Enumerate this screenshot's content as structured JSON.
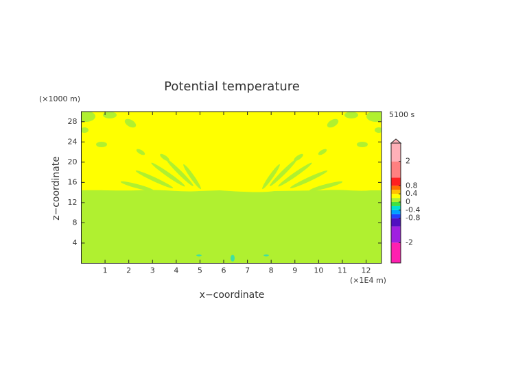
{
  "chart_data": {
    "type": "contour",
    "title": "Potential temperature",
    "xlabel": "x−coordinate",
    "ylabel": "z−coordinate",
    "x_unit": "(×1E4 m)",
    "y_unit": "(×1000 m)",
    "time_label": "5100 s",
    "xlim": [
      0,
      12.65
    ],
    "ylim": [
      0,
      30
    ],
    "xticks": [
      1,
      2,
      3,
      4,
      5,
      6,
      7,
      8,
      9,
      10,
      11,
      12
    ],
    "yticks": [
      4,
      8,
      12,
      16,
      20,
      24,
      28
    ],
    "colorbar": {
      "lim": [
        -3,
        2.9
      ],
      "ticks": [
        -2,
        -0.8,
        -0.4,
        0,
        0.4,
        0.8,
        2
      ],
      "levels": [
        -3,
        -2,
        -1.2,
        -0.8,
        -0.6,
        -0.4,
        -0.2,
        0,
        0.2,
        0.4,
        0.6,
        0.8,
        1.2,
        2,
        2.9
      ],
      "colors": [
        "#ff1fb0",
        "#a020e0",
        "#5010c0",
        "#2040ff",
        "#00a0ff",
        "#00e0d0",
        "#40e040",
        "#b0f030",
        "#ffff00",
        "#ffc000",
        "#ff7000",
        "#ff2020",
        "#ff8080",
        "#ffb0b8"
      ]
    }
  }
}
